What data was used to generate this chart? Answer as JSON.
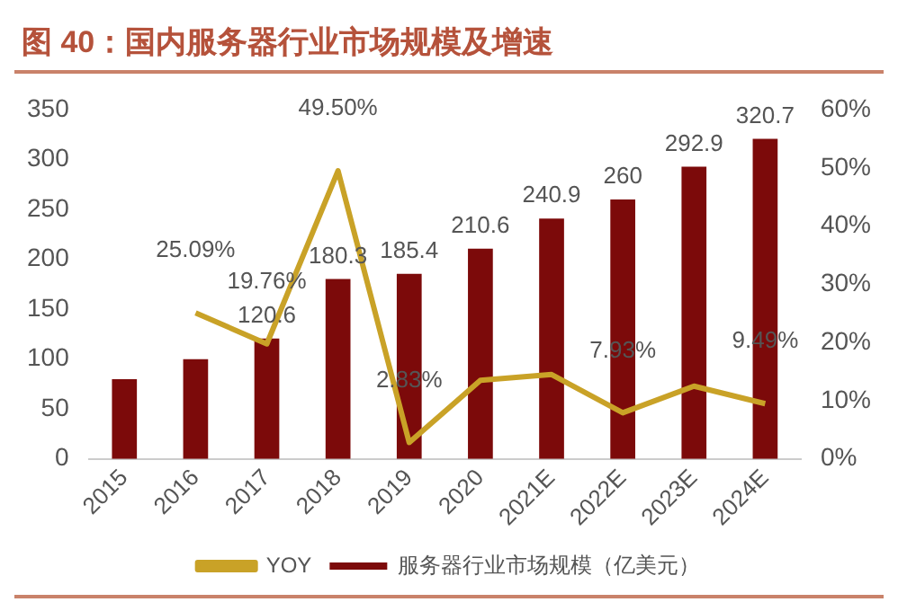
{
  "chart_data": {
    "type": "bar",
    "title": "图 40：国内服务器行业市场规模及增速",
    "categories": [
      "2015",
      "2016",
      "2017",
      "2018",
      "2019",
      "2020",
      "2021E",
      "2022E",
      "2023E",
      "2024E"
    ],
    "series": [
      {
        "name": "服务器行业市场规模（亿美元）",
        "color": "#7c0a0a",
        "values": [
          80,
          100,
          120.6,
          180.3,
          185.4,
          210.6,
          240.9,
          260,
          292.9,
          320.7
        ],
        "value_labels": [
          null,
          null,
          "120.6",
          "180.3",
          "185.4",
          "210.6",
          "240.9",
          "260",
          "292.9",
          "320.7"
        ]
      },
      {
        "name": "YOY",
        "type": "line",
        "axis": "y2",
        "marker": "none",
        "color": "#c9a227",
        "values": [
          null,
          25.09,
          19.76,
          49.5,
          2.83,
          13.5,
          14.5,
          7.93,
          12.5,
          9.49
        ],
        "value_labels": [
          null,
          "25.09%",
          "19.76%",
          "49.50%",
          "2.83%",
          null,
          null,
          "7.93%",
          null,
          "9.49%"
        ]
      }
    ],
    "ylim": [
      0,
      350
    ],
    "yticks": [
      0,
      50,
      100,
      150,
      200,
      250,
      300,
      350
    ],
    "y2lim": [
      0,
      60
    ],
    "y2ticks": [
      {
        "value": 0,
        "label": "0%"
      },
      {
        "value": 10,
        "label": "10%"
      },
      {
        "value": 20,
        "label": "20%"
      },
      {
        "value": 30,
        "label": "30%"
      },
      {
        "value": 40,
        "label": "40%"
      },
      {
        "value": 50,
        "label": "50%"
      },
      {
        "value": 60,
        "label": "60%"
      }
    ],
    "legend": "bottom"
  }
}
